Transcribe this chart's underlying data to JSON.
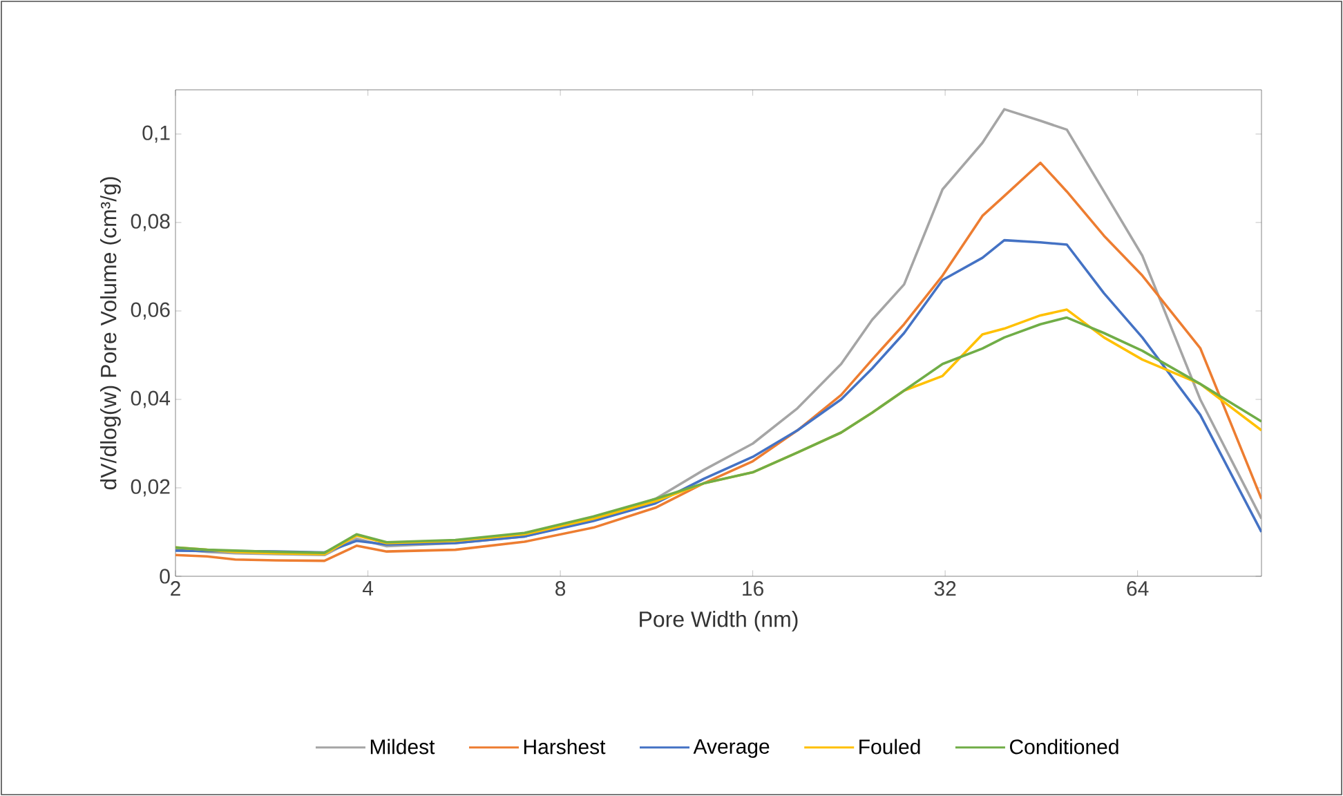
{
  "chart_data": {
    "type": "line",
    "xlabel": "Pore Width (nm)",
    "ylabel": "dV/dlog(w) Pore Volume (cm³/g)",
    "log": "x",
    "x": [
      2,
      2.24,
      2.48,
      2.87,
      3.42,
      3.84,
      4.28,
      5.48,
      7.03,
      9.01,
      11.27,
      13.4,
      16,
      18.8,
      22.0,
      24.6,
      27.6,
      31.7,
      36.6,
      39.6,
      45.1,
      49.6,
      56.7,
      65.1,
      80.2,
      100
    ],
    "series": [
      {
        "name": "Mildest",
        "color": "#a5a5a5",
        "values": [
          0.0062,
          0.0055,
          0.0052,
          0.005,
          0.0048,
          0.0085,
          0.0068,
          0.0075,
          0.009,
          0.0128,
          0.0175,
          0.024,
          0.03,
          0.038,
          0.048,
          0.058,
          0.066,
          0.0875,
          0.098,
          0.1056,
          0.103,
          0.101,
          0.087,
          0.0725,
          0.04,
          0.013
        ]
      },
      {
        "name": "Harshest",
        "color": "#ed7d31",
        "values": [
          0.0048,
          0.0045,
          0.0038,
          0.0036,
          0.0035,
          0.0069,
          0.0056,
          0.006,
          0.0078,
          0.011,
          0.0155,
          0.021,
          0.026,
          0.033,
          0.041,
          0.049,
          0.057,
          0.068,
          0.0815,
          0.086,
          0.0935,
          0.087,
          0.077,
          0.068,
          0.0516,
          0.0175
        ]
      },
      {
        "name": "Average",
        "color": "#4472c4",
        "values": [
          0.0058,
          0.0057,
          0.0057,
          0.0056,
          0.0054,
          0.008,
          0.0072,
          0.0075,
          0.009,
          0.0125,
          0.0165,
          0.022,
          0.027,
          0.033,
          0.04,
          0.047,
          0.055,
          0.067,
          0.072,
          0.076,
          0.0755,
          0.075,
          0.064,
          0.054,
          0.0365,
          0.01
        ]
      },
      {
        "name": "Fouled",
        "color": "#ffc000",
        "values": [
          0.0065,
          0.006,
          0.0055,
          0.0052,
          0.005,
          0.0092,
          0.0075,
          0.008,
          0.0095,
          0.013,
          0.017,
          0.021,
          0.0235,
          0.028,
          0.0325,
          0.037,
          0.042,
          0.0453,
          0.0547,
          0.056,
          0.059,
          0.0603,
          0.054,
          0.049,
          0.0435,
          0.033
        ]
      },
      {
        "name": "Conditioned",
        "color": "#70ad47",
        "values": [
          0.0065,
          0.006,
          0.0058,
          0.0055,
          0.0053,
          0.0095,
          0.0077,
          0.0082,
          0.0098,
          0.0135,
          0.0175,
          0.021,
          0.0235,
          0.028,
          0.0325,
          0.037,
          0.042,
          0.048,
          0.0515,
          0.054,
          0.057,
          0.0585,
          0.055,
          0.051,
          0.0435,
          0.035
        ]
      }
    ],
    "xlim": [
      2,
      100
    ],
    "ylim": [
      0,
      0.11
    ],
    "xticks": [
      2,
      4,
      8,
      16,
      32,
      64
    ],
    "yticks": [
      0,
      {
        "value": 0.02,
        "label": "0,02"
      },
      {
        "value": 0.04,
        "label": "0,04"
      },
      {
        "value": 0.06,
        "label": "0,06"
      },
      {
        "value": 0.08,
        "label": "0,08"
      },
      {
        "value": 0.1,
        "label": "0,1"
      }
    ],
    "grid": false,
    "legend": "bottom",
    "marker": "none",
    "line_style": "solid"
  }
}
